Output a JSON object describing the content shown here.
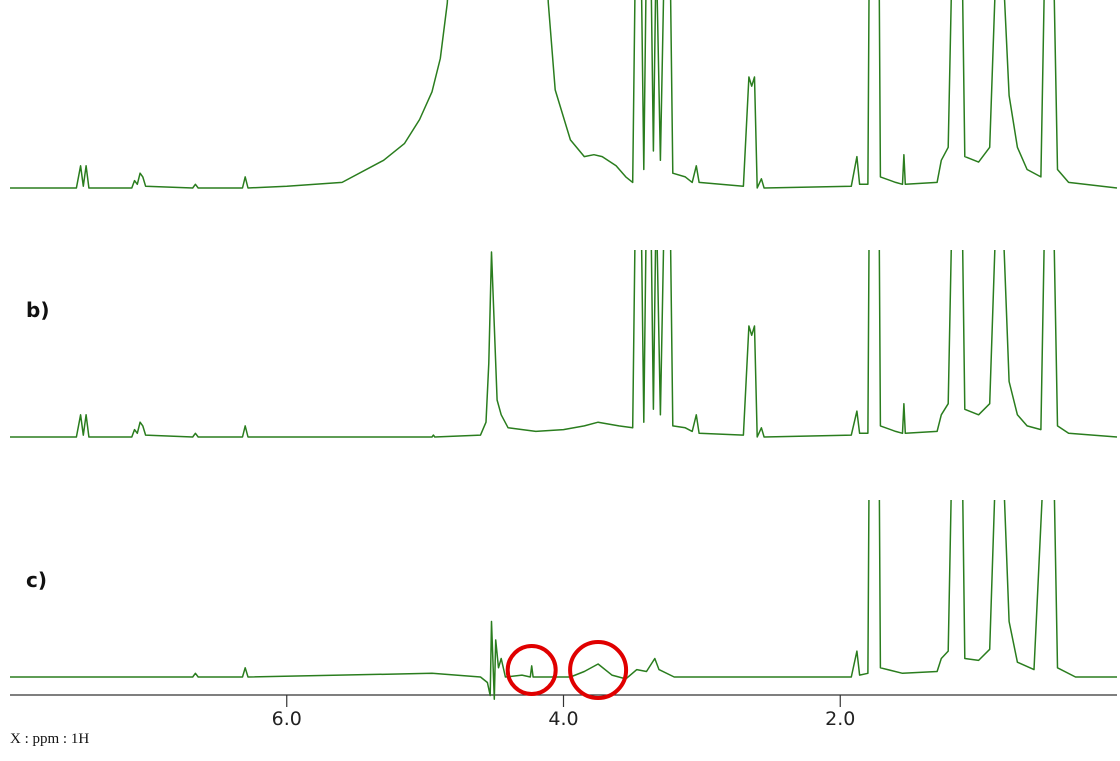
{
  "chart_data": [
    {
      "type": "line",
      "color": "#2a7d1e",
      "xlim": [
        8,
        0
      ],
      "ylim": [
        0,
        100
      ],
      "x": [
        8.0,
        7.52,
        7.49,
        7.47,
        7.45,
        7.43,
        7.12,
        7.1,
        7.08,
        7.06,
        7.04,
        7.02,
        6.68,
        6.66,
        6.64,
        6.32,
        6.3,
        6.28,
        6.0,
        5.6,
        5.3,
        5.15,
        5.04,
        4.95,
        4.89,
        4.84,
        4.82,
        4.13,
        4.11,
        4.06,
        3.95,
        3.85,
        3.78,
        3.72,
        3.62,
        3.55,
        3.5,
        3.48,
        3.44,
        3.42,
        3.4,
        3.37,
        3.35,
        3.33,
        3.3,
        3.27,
        3.23,
        3.21,
        3.12,
        3.07,
        3.04,
        3.02,
        2.7,
        2.66,
        2.64,
        2.62,
        2.6,
        2.57,
        2.55,
        1.92,
        1.88,
        1.86,
        1.8,
        1.79,
        1.72,
        1.71,
        1.6,
        1.55,
        1.54,
        1.53,
        1.3,
        1.27,
        1.22,
        1.19,
        1.12,
        1.1,
        1.0,
        0.92,
        0.87,
        0.83,
        0.78,
        0.72,
        0.65,
        0.55,
        0.52,
        0.46,
        0.43,
        0.35,
        0.0
      ],
      "values": [
        0,
        0,
        12,
        1,
        12,
        0,
        0,
        4,
        2,
        8,
        6,
        1,
        0,
        2,
        0,
        0,
        6,
        0,
        1,
        3,
        15,
        24,
        37,
        52,
        70,
        100,
        130,
        130,
        100,
        53,
        26,
        17,
        18,
        17,
        12,
        6,
        3,
        130,
        130,
        10,
        130,
        130,
        20,
        130,
        15,
        130,
        130,
        8,
        6,
        3,
        12,
        3,
        1,
        60,
        55,
        60,
        0,
        5,
        0,
        1,
        17,
        2,
        2,
        130,
        130,
        6,
        3,
        2,
        18,
        2,
        3,
        15,
        22,
        130,
        130,
        17,
        14,
        22,
        130,
        130,
        50,
        22,
        10,
        6,
        130,
        130,
        10,
        3,
        0
      ]
    },
    {
      "type": "line",
      "label": "b)",
      "color": "#2a7d1e",
      "xlim": [
        8,
        0
      ],
      "ylim": [
        0,
        100
      ],
      "x": [
        8.0,
        7.52,
        7.49,
        7.47,
        7.45,
        7.43,
        7.12,
        7.1,
        7.08,
        7.06,
        7.04,
        7.02,
        6.68,
        6.66,
        6.64,
        6.32,
        6.3,
        6.28,
        4.95,
        4.94,
        4.93,
        4.6,
        4.56,
        4.54,
        4.52,
        4.5,
        4.48,
        4.45,
        4.4,
        4.2,
        4.0,
        3.85,
        3.75,
        3.6,
        3.5,
        3.48,
        3.44,
        3.42,
        3.4,
        3.37,
        3.35,
        3.33,
        3.3,
        3.27,
        3.23,
        3.21,
        3.12,
        3.07,
        3.04,
        3.02,
        2.7,
        2.66,
        2.64,
        2.62,
        2.6,
        2.57,
        2.55,
        1.92,
        1.88,
        1.86,
        1.8,
        1.79,
        1.72,
        1.71,
        1.6,
        1.55,
        1.54,
        1.53,
        1.3,
        1.27,
        1.22,
        1.19,
        1.12,
        1.1,
        1.0,
        0.92,
        0.87,
        0.83,
        0.78,
        0.72,
        0.65,
        0.55,
        0.52,
        0.46,
        0.43,
        0.35,
        0.0
      ],
      "values": [
        0,
        0,
        12,
        1,
        12,
        0,
        0,
        4,
        2,
        8,
        6,
        1,
        0,
        2,
        0,
        0,
        6,
        0,
        0,
        1,
        0,
        1,
        8,
        40,
        100,
        60,
        20,
        12,
        5,
        3,
        4,
        6,
        8,
        6,
        5,
        130,
        130,
        8,
        130,
        130,
        15,
        130,
        12,
        130,
        130,
        6,
        5,
        3,
        12,
        2,
        1,
        60,
        55,
        60,
        0,
        5,
        0,
        1,
        14,
        2,
        2,
        130,
        130,
        6,
        3,
        2,
        18,
        2,
        3,
        12,
        18,
        130,
        130,
        15,
        12,
        18,
        130,
        130,
        30,
        12,
        6,
        4,
        130,
        130,
        6,
        2,
        0
      ]
    },
    {
      "type": "line",
      "label": "c)",
      "color": "#2a7d1e",
      "xlim": [
        8,
        0
      ],
      "ylim": [
        0,
        100
      ],
      "x": [
        8.0,
        6.68,
        6.66,
        6.64,
        6.32,
        6.3,
        6.28,
        4.95,
        4.6,
        4.55,
        4.53,
        4.52,
        4.5,
        4.49,
        4.47,
        4.45,
        4.42,
        4.3,
        4.24,
        4.23,
        4.22,
        3.95,
        3.85,
        3.75,
        3.65,
        3.55,
        3.47,
        3.4,
        3.34,
        3.31,
        3.2,
        1.92,
        1.88,
        1.86,
        1.8,
        1.79,
        1.72,
        1.71,
        1.55,
        1.3,
        1.27,
        1.22,
        1.19,
        1.12,
        1.1,
        1.0,
        0.92,
        0.87,
        0.83,
        0.78,
        0.72,
        0.6,
        0.52,
        0.46,
        0.43,
        0.3,
        0.0
      ],
      "values": [
        0,
        0,
        2,
        0,
        0,
        5,
        0,
        2,
        0,
        -3,
        -10,
        30,
        -12,
        20,
        5,
        10,
        0,
        1,
        0,
        6,
        0,
        0,
        3,
        7,
        1,
        -1,
        4,
        3,
        10,
        4,
        0,
        0,
        14,
        1,
        2,
        130,
        130,
        5,
        2,
        3,
        10,
        14,
        130,
        130,
        10,
        9,
        15,
        130,
        130,
        30,
        8,
        4,
        130,
        130,
        5,
        0,
        0
      ],
      "highlight_x": [
        4.23,
        3.75
      ],
      "highlight_color": "#e00000",
      "xticks": [
        {
          "value": 6,
          "label": "6.0"
        },
        {
          "value": 4,
          "label": "4.0"
        },
        {
          "value": 2,
          "label": "2.0"
        }
      ],
      "x_label": "X : ppm : 1H"
    }
  ]
}
